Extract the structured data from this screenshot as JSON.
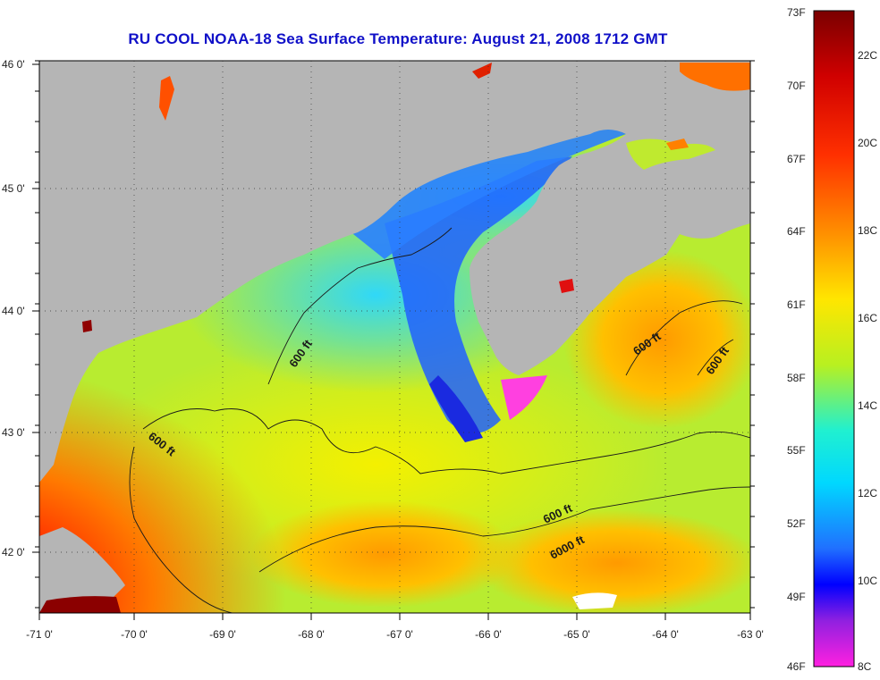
{
  "title": "RU COOL  NOAA-18  Sea Surface Temperature:  August 21, 2008 1712 GMT",
  "map": {
    "lon_ticks": [
      "-71 0'",
      "-70 0'",
      "-69 0'",
      "-68 0'",
      "-67 0'",
      "-66 0'",
      "-65 0'",
      "-64 0'",
      "-63 0'"
    ],
    "lat_ticks": [
      "46 0'",
      "45 0'",
      "44 0'",
      "43 0'",
      "42 0'"
    ],
    "contour_labels": [
      {
        "text": "600 ft"
      },
      {
        "text": "600 ft"
      },
      {
        "text": "600 ft"
      },
      {
        "text": "600 ft"
      },
      {
        "text": "600 ft"
      },
      {
        "text": "6000 ft"
      }
    ]
  },
  "colorbar": {
    "fahrenheit": [
      "73F",
      "70F",
      "67F",
      "64F",
      "61F",
      "58F",
      "55F",
      "52F",
      "49F",
      "46F"
    ],
    "celsius": [
      "22C",
      "20C",
      "18C",
      "16C",
      "14C",
      "12C",
      "10C",
      "8C"
    ],
    "colors": [
      "#8b0000",
      "#ff1a00",
      "#ff8c00",
      "#ffe000",
      "#b0f020",
      "#00ffff",
      "#2080ff",
      "#0000ff",
      "#ff00ff"
    ]
  }
}
